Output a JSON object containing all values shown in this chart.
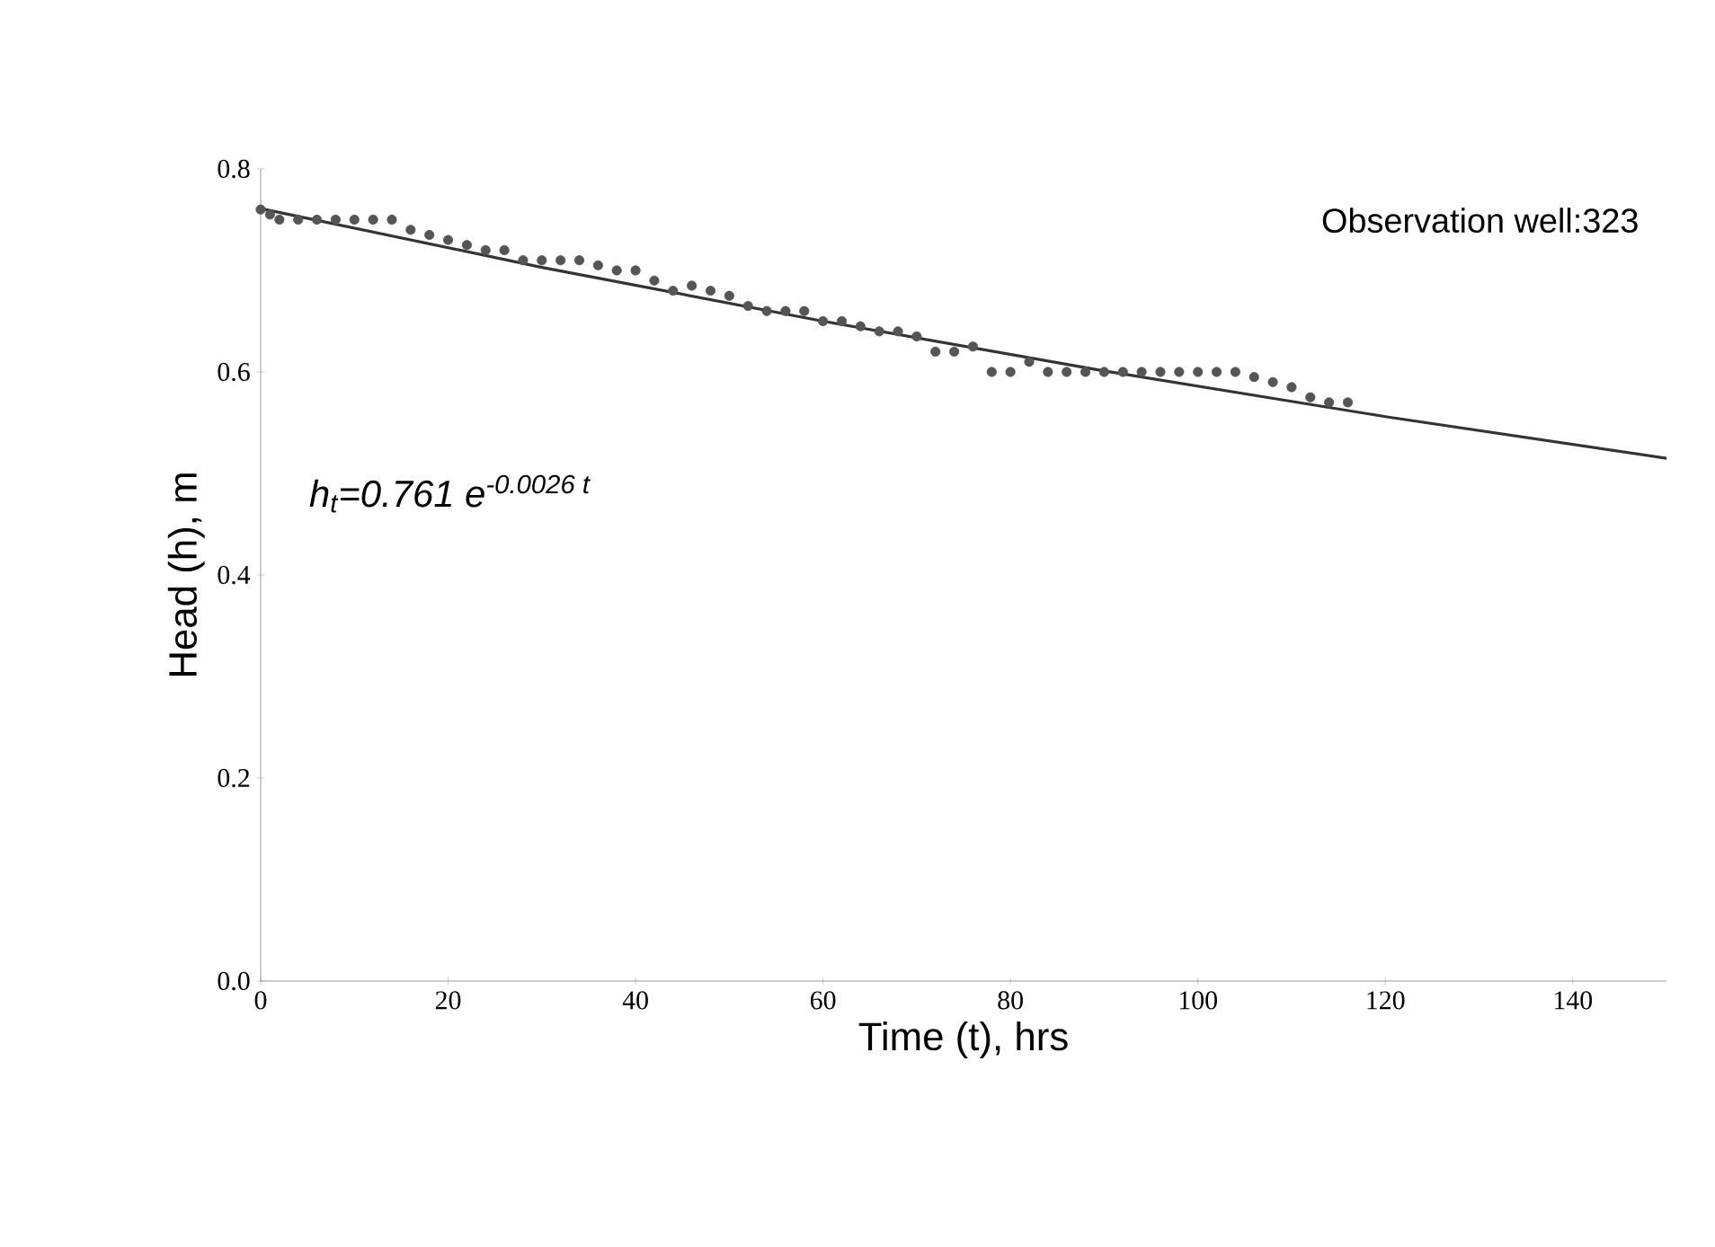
{
  "chart_data": {
    "type": "scatter",
    "xlabel": "Time (t), hrs",
    "ylabel": "Head (h), m",
    "annotations": [
      "Observation well:323",
      "h$_{t}$=0.761 e$^{-0.0026 t}$"
    ],
    "xlim": [
      0,
      150
    ],
    "ylim": [
      0,
      0.8
    ],
    "xticks": [
      0,
      20,
      40,
      60,
      80,
      100,
      120,
      140
    ],
    "yticks": [
      {
        "value": 0,
        "label": "0.0"
      },
      {
        "value": 0.2,
        "label": "0.2"
      },
      {
        "value": 0.4,
        "label": "0.4"
      },
      {
        "value": 0.6,
        "label": "0.6"
      },
      {
        "value": 0.8,
        "label": "0.8"
      }
    ],
    "grid": false,
    "series": [
      {
        "marker": "circle",
        "color": "#555555",
        "x": [
          0,
          1,
          2,
          4,
          6,
          8,
          10,
          12,
          14,
          16,
          18,
          20,
          22,
          24,
          26,
          28,
          30,
          32,
          34,
          36,
          38,
          40,
          42,
          44,
          46,
          48,
          50,
          52,
          54,
          56,
          58,
          60,
          62,
          64,
          66,
          68,
          70,
          72,
          74,
          76,
          78,
          80,
          82,
          84,
          86,
          88,
          90,
          92,
          94,
          96,
          98,
          100,
          102,
          104,
          106,
          108,
          110,
          112,
          114,
          116
        ],
        "values": [
          0.76,
          0.755,
          0.75,
          0.75,
          0.75,
          0.75,
          0.75,
          0.75,
          0.75,
          0.74,
          0.735,
          0.73,
          0.725,
          0.72,
          0.72,
          0.71,
          0.71,
          0.71,
          0.71,
          0.705,
          0.7,
          0.7,
          0.69,
          0.68,
          0.685,
          0.68,
          0.675,
          0.665,
          0.66,
          0.66,
          0.66,
          0.65,
          0.65,
          0.645,
          0.64,
          0.64,
          0.635,
          0.62,
          0.62,
          0.625,
          0.6,
          0.6,
          0.61,
          0.6,
          0.6,
          0.6,
          0.6,
          0.6,
          0.6,
          0.6,
          0.6,
          0.6,
          0.6,
          0.6,
          0.595,
          0.59,
          0.585,
          0.575,
          0.57,
          0.57
        ]
      },
      {
        "type": "line",
        "marker": "none",
        "color": "#333333",
        "line_style": "solid",
        "x": [
          0,
          30,
          60,
          90,
          120,
          150
        ],
        "values": [
          0.761,
          0.703,
          0.65,
          0.601,
          0.556,
          0.515
        ]
      }
    ]
  }
}
